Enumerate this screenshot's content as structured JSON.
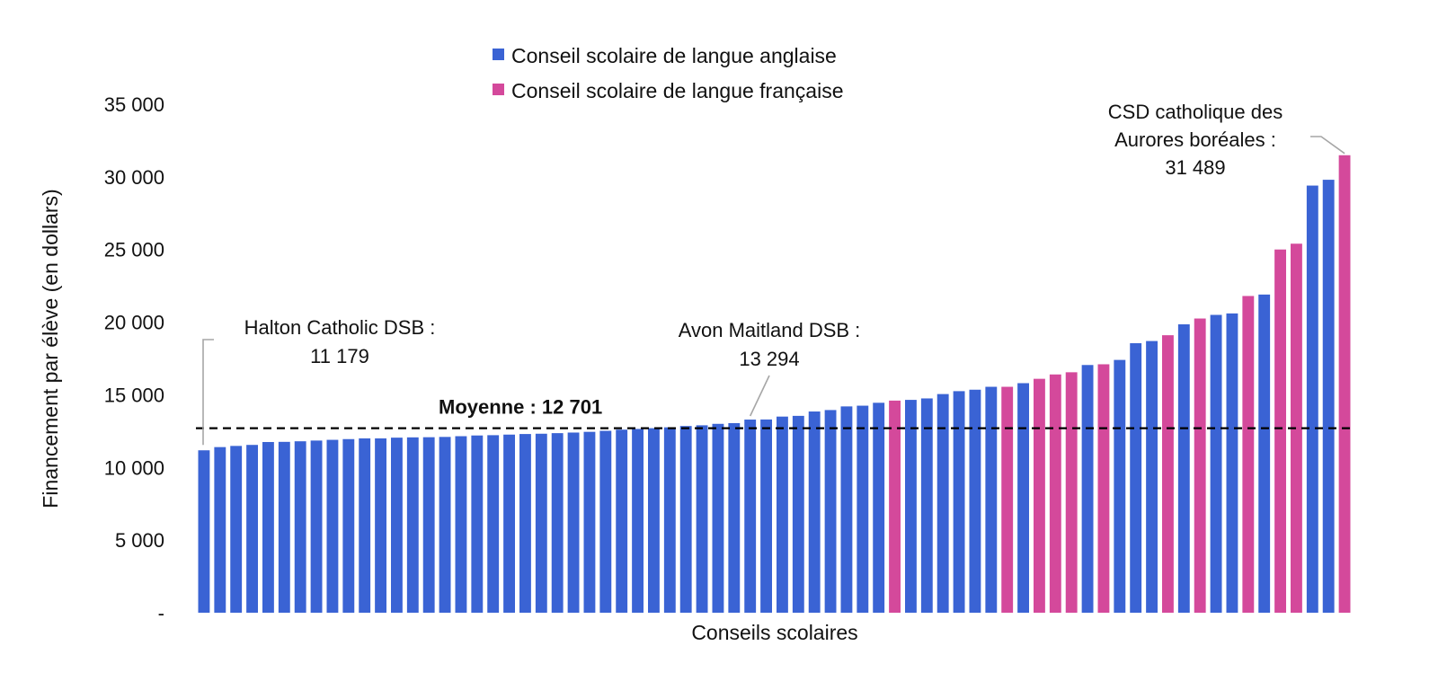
{
  "chart_data": {
    "type": "bar",
    "xlabel": "Conseils scolaires",
    "ylabel": "Financement par élève (en dollars)",
    "ylim": [
      0,
      35000
    ],
    "yticks": [
      {
        "value": 0,
        "label": "-"
      },
      {
        "value": 5000,
        "label": "5 000"
      },
      {
        "value": 10000,
        "label": "10 000"
      },
      {
        "value": 15000,
        "label": "15 000"
      },
      {
        "value": 20000,
        "label": "20 000"
      },
      {
        "value": 25000,
        "label": "25 000"
      },
      {
        "value": 30000,
        "label": "30 000"
      },
      {
        "value": 35000,
        "label": "35 000"
      }
    ],
    "legend": {
      "placement": "top-center",
      "items": [
        {
          "key": "en",
          "label": "Conseil scolaire de langue anglaise",
          "color": "#3A63D4"
        },
        {
          "key": "fr",
          "label": "Conseil scolaire de langue française",
          "color": "#D4499B"
        }
      ]
    },
    "values": [
      11179,
      11400,
      11480,
      11550,
      11750,
      11760,
      11800,
      11850,
      11900,
      11950,
      12000,
      12000,
      12050,
      12070,
      12080,
      12100,
      12150,
      12200,
      12220,
      12260,
      12300,
      12320,
      12360,
      12400,
      12450,
      12520,
      12600,
      12650,
      12701,
      12760,
      12850,
      12900,
      13000,
      13050,
      13294,
      13300,
      13500,
      13550,
      13850,
      13950,
      14200,
      14250,
      14450,
      14600,
      14650,
      14750,
      15050,
      15250,
      15350,
      15550,
      15550,
      15800,
      16100,
      16400,
      16550,
      17050,
      17100,
      17400,
      18550,
      18700,
      19100,
      19850,
      20250,
      20500,
      20600,
      21800,
      21900,
      25000,
      25400,
      29400,
      29800,
      31489
    ],
    "languages": [
      "en",
      "en",
      "en",
      "en",
      "en",
      "en",
      "en",
      "en",
      "en",
      "en",
      "en",
      "en",
      "en",
      "en",
      "en",
      "en",
      "en",
      "en",
      "en",
      "en",
      "en",
      "en",
      "en",
      "en",
      "en",
      "en",
      "en",
      "en",
      "en",
      "en",
      "en",
      "en",
      "en",
      "en",
      "en",
      "en",
      "en",
      "en",
      "en",
      "en",
      "en",
      "en",
      "en",
      "fr",
      "en",
      "en",
      "en",
      "en",
      "en",
      "en",
      "fr",
      "en",
      "fr",
      "fr",
      "fr",
      "en",
      "fr",
      "en",
      "en",
      "en",
      "fr",
      "en",
      "fr",
      "en",
      "en",
      "fr",
      "en",
      "fr",
      "fr",
      "en",
      "en",
      "fr"
    ],
    "mean": {
      "value": 12701,
      "label": "Moyenne :  12 701"
    },
    "annotations": [
      {
        "lines": [
          "Halton Catholic DSB :",
          "11 179"
        ],
        "bar_index": 0
      },
      {
        "lines": [
          "Avon Maitland DSB :",
          "13 294"
        ],
        "bar_index": 34
      },
      {
        "lines": [
          "CSD catholique des",
          "Aurores boréales :",
          "31 489"
        ],
        "bar_index": 71
      }
    ]
  }
}
